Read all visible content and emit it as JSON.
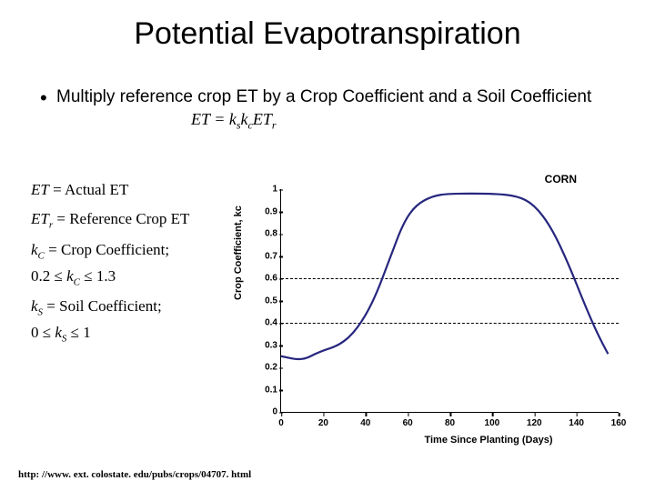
{
  "title": "Potential Evapotranspiration",
  "bullet": "Multiply reference crop ET by a Crop Coefficient and a Soil Coefficient",
  "formula_inline": "ET = k_s k_c ET_r",
  "legend": {
    "l1_left": "ET",
    "l1_right": " = Actual ET",
    "l2_left": "ET_r",
    "l2_right": " = Reference Crop ET",
    "l3_left": "k_C",
    "l3_right": " = Crop Coefficient;",
    "l3_range_a": "0.2 ≤ ",
    "l3_range_b": "k_C",
    "l3_range_c": " ≤ 1.3",
    "l4_left": "k_S",
    "l4_right": " = Soil Coefficient;",
    "l4_range_a": "0 ≤ ",
    "l4_range_b": "k_S",
    "l4_range_c": " ≤ 1"
  },
  "chart": {
    "type": "line",
    "title": "CORN",
    "ylabel": "Crop Coefficient, kc",
    "xlabel": "Time Since Planting (Days)",
    "xlim": [
      0,
      160
    ],
    "ylim": [
      0,
      1.0
    ],
    "xticks": [
      0,
      20,
      40,
      60,
      80,
      100,
      120,
      140,
      160
    ],
    "yticks": [
      0,
      0.1,
      0.2,
      0.3,
      0.4,
      0.5,
      0.6,
      0.7,
      0.8,
      0.9,
      1.0
    ],
    "ref_lines_y": [
      0.4,
      0.6
    ],
    "line_color": "#26267f",
    "background_color": "#ffffff",
    "line_width": 2.2,
    "data": [
      [
        0,
        0.25
      ],
      [
        10,
        0.23
      ],
      [
        18,
        0.27
      ],
      [
        28,
        0.3
      ],
      [
        36,
        0.37
      ],
      [
        44,
        0.5
      ],
      [
        52,
        0.7
      ],
      [
        58,
        0.85
      ],
      [
        64,
        0.93
      ],
      [
        72,
        0.97
      ],
      [
        80,
        0.98
      ],
      [
        100,
        0.98
      ],
      [
        112,
        0.97
      ],
      [
        120,
        0.93
      ],
      [
        128,
        0.83
      ],
      [
        136,
        0.67
      ],
      [
        144,
        0.48
      ],
      [
        150,
        0.35
      ],
      [
        155,
        0.26
      ]
    ]
  },
  "footer_url": "http: //www. ext. colostate. edu/pubs/crops/04707. html"
}
